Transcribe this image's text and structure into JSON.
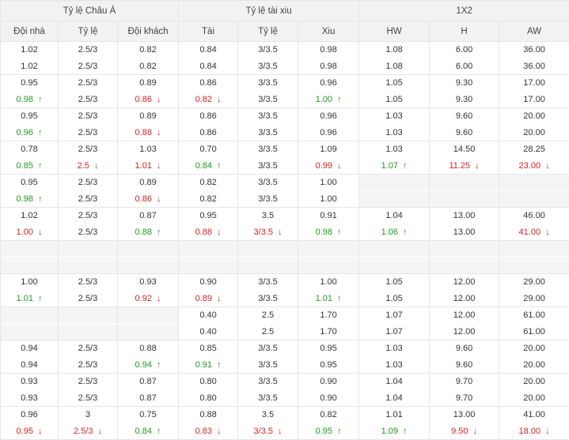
{
  "headers": {
    "asian": "Tỷ lệ Châu Á",
    "overunder": "Tỷ lệ tài xiu",
    "x12": "1X2",
    "columns": [
      "Đội nhà",
      "Tỷ lệ",
      "Đội khách",
      "Tài",
      "Tỷ lệ",
      "Xiu",
      "HW",
      "H",
      "AW"
    ]
  },
  "arrows": {
    "up": "↑",
    "down": "↓"
  },
  "colors": {
    "up": "#1f9a1f",
    "down": "#d22323",
    "border": "#e6e6e6",
    "header_bg": "#f2f2f2"
  },
  "rows": [
    [
      [
        {
          "v": "1.02"
        },
        {
          "v": "2.5/3"
        },
        {
          "v": "0.82"
        },
        {
          "v": "0.84"
        },
        {
          "v": "3/3.5"
        },
        {
          "v": "0.98"
        },
        {
          "v": "1.08"
        },
        {
          "v": "6.00"
        },
        {
          "v": "36.00"
        }
      ],
      [
        {
          "v": "1.02"
        },
        {
          "v": "2.5/3"
        },
        {
          "v": "0.82"
        },
        {
          "v": "0.84"
        },
        {
          "v": "3/3.5"
        },
        {
          "v": "0.98"
        },
        {
          "v": "1.08"
        },
        {
          "v": "6.00"
        },
        {
          "v": "36.00"
        }
      ]
    ],
    [
      [
        {
          "v": "0.95"
        },
        {
          "v": "2.5/3"
        },
        {
          "v": "0.89"
        },
        {
          "v": "0.86"
        },
        {
          "v": "3/3.5"
        },
        {
          "v": "0.96"
        },
        {
          "v": "1.05"
        },
        {
          "v": "9.30"
        },
        {
          "v": "17.00"
        }
      ],
      [
        {
          "v": "0.98",
          "t": "up"
        },
        {
          "v": "2.5/3"
        },
        {
          "v": "0.86",
          "t": "down"
        },
        {
          "v": "0.82",
          "t": "down"
        },
        {
          "v": "3/3.5"
        },
        {
          "v": "1.00",
          "t": "up"
        },
        {
          "v": "1.05"
        },
        {
          "v": "9.30"
        },
        {
          "v": "17.00"
        }
      ]
    ],
    [
      [
        {
          "v": "0.95"
        },
        {
          "v": "2.5/3"
        },
        {
          "v": "0.89"
        },
        {
          "v": "0.86"
        },
        {
          "v": "3/3.5"
        },
        {
          "v": "0.96"
        },
        {
          "v": "1.03"
        },
        {
          "v": "9.60"
        },
        {
          "v": "20.00"
        }
      ],
      [
        {
          "v": "0.96",
          "t": "up"
        },
        {
          "v": "2.5/3"
        },
        {
          "v": "0.88",
          "t": "down"
        },
        {
          "v": "0.86"
        },
        {
          "v": "3/3.5"
        },
        {
          "v": "0.96"
        },
        {
          "v": "1.03"
        },
        {
          "v": "9.60"
        },
        {
          "v": "20.00"
        }
      ]
    ],
    [
      [
        {
          "v": "0.78"
        },
        {
          "v": "2.5/3"
        },
        {
          "v": "1.03"
        },
        {
          "v": "0.70"
        },
        {
          "v": "3/3.5"
        },
        {
          "v": "1.09"
        },
        {
          "v": "1.03"
        },
        {
          "v": "14.50"
        },
        {
          "v": "28.25"
        }
      ],
      [
        {
          "v": "0.85",
          "t": "up"
        },
        {
          "v": "2.5",
          "t": "down"
        },
        {
          "v": "1.01",
          "t": "down"
        },
        {
          "v": "0.84",
          "t": "up"
        },
        {
          "v": "3/3.5"
        },
        {
          "v": "0.99",
          "t": "down"
        },
        {
          "v": "1.07",
          "t": "up"
        },
        {
          "v": "11.25",
          "t": "down"
        },
        {
          "v": "23.00",
          "t": "down"
        }
      ]
    ],
    [
      [
        {
          "v": "0.95"
        },
        {
          "v": "2.5/3"
        },
        {
          "v": "0.89"
        },
        {
          "v": "0.82"
        },
        {
          "v": "3/3.5"
        },
        {
          "v": "1.00"
        },
        {
          "v": ""
        },
        {
          "v": ""
        },
        {
          "v": ""
        }
      ],
      [
        {
          "v": "0.98",
          "t": "up"
        },
        {
          "v": "2.5/3"
        },
        {
          "v": "0.86",
          "t": "down"
        },
        {
          "v": "0.82"
        },
        {
          "v": "3/3.5"
        },
        {
          "v": "1.00"
        },
        {
          "v": ""
        },
        {
          "v": ""
        },
        {
          "v": ""
        }
      ]
    ],
    [
      [
        {
          "v": "1.02"
        },
        {
          "v": "2.5/3"
        },
        {
          "v": "0.87"
        },
        {
          "v": "0.95"
        },
        {
          "v": "3.5"
        },
        {
          "v": "0.91"
        },
        {
          "v": "1.04"
        },
        {
          "v": "13.00"
        },
        {
          "v": "46.00"
        }
      ],
      [
        {
          "v": "1.00",
          "t": "down"
        },
        {
          "v": "2.5/3"
        },
        {
          "v": "0.88",
          "t": "up"
        },
        {
          "v": "0.88",
          "t": "down"
        },
        {
          "v": "3/3.5",
          "t": "down"
        },
        {
          "v": "0.98",
          "t": "up"
        },
        {
          "v": "1.06",
          "t": "up"
        },
        {
          "v": "13.00"
        },
        {
          "v": "41.00",
          "t": "down"
        }
      ]
    ],
    [
      [
        {
          "v": ""
        },
        {
          "v": ""
        },
        {
          "v": ""
        },
        {
          "v": ""
        },
        {
          "v": ""
        },
        {
          "v": ""
        },
        {
          "v": ""
        },
        {
          "v": ""
        },
        {
          "v": ""
        }
      ],
      [
        {
          "v": ""
        },
        {
          "v": ""
        },
        {
          "v": ""
        },
        {
          "v": ""
        },
        {
          "v": ""
        },
        {
          "v": ""
        },
        {
          "v": ""
        },
        {
          "v": ""
        },
        {
          "v": ""
        }
      ]
    ],
    [
      [
        {
          "v": "1.00"
        },
        {
          "v": "2.5/3"
        },
        {
          "v": "0.93"
        },
        {
          "v": "0.90"
        },
        {
          "v": "3/3.5"
        },
        {
          "v": "1.00"
        },
        {
          "v": "1.05"
        },
        {
          "v": "12.00"
        },
        {
          "v": "29.00"
        }
      ],
      [
        {
          "v": "1.01",
          "t": "up"
        },
        {
          "v": "2.5/3"
        },
        {
          "v": "0.92",
          "t": "down"
        },
        {
          "v": "0.89",
          "t": "down"
        },
        {
          "v": "3/3.5"
        },
        {
          "v": "1.01",
          "t": "up"
        },
        {
          "v": "1.05"
        },
        {
          "v": "12.00"
        },
        {
          "v": "29.00"
        }
      ]
    ],
    [
      [
        {
          "v": ""
        },
        {
          "v": ""
        },
        {
          "v": ""
        },
        {
          "v": "0.40"
        },
        {
          "v": "2.5"
        },
        {
          "v": "1.70"
        },
        {
          "v": "1.07"
        },
        {
          "v": "12.00"
        },
        {
          "v": "61.00"
        }
      ],
      [
        {
          "v": ""
        },
        {
          "v": ""
        },
        {
          "v": ""
        },
        {
          "v": "0.40"
        },
        {
          "v": "2.5"
        },
        {
          "v": "1.70"
        },
        {
          "v": "1.07"
        },
        {
          "v": "12.00"
        },
        {
          "v": "61.00"
        }
      ]
    ],
    [
      [
        {
          "v": "0.94"
        },
        {
          "v": "2.5/3"
        },
        {
          "v": "0.88"
        },
        {
          "v": "0.85"
        },
        {
          "v": "3/3.5"
        },
        {
          "v": "0.95"
        },
        {
          "v": "1.03"
        },
        {
          "v": "9.60"
        },
        {
          "v": "20.00"
        }
      ],
      [
        {
          "v": "0.94"
        },
        {
          "v": "2.5/3"
        },
        {
          "v": "0.94",
          "t": "up"
        },
        {
          "v": "0.91",
          "t": "up"
        },
        {
          "v": "3/3.5"
        },
        {
          "v": "0.95"
        },
        {
          "v": "1.03"
        },
        {
          "v": "9.60"
        },
        {
          "v": "20.00"
        }
      ]
    ],
    [
      [
        {
          "v": "0.93"
        },
        {
          "v": "2.5/3"
        },
        {
          "v": "0.87"
        },
        {
          "v": "0.80"
        },
        {
          "v": "3/3.5"
        },
        {
          "v": "0.90"
        },
        {
          "v": "1.04"
        },
        {
          "v": "9.70"
        },
        {
          "v": "20.00"
        }
      ],
      [
        {
          "v": "0.93"
        },
        {
          "v": "2.5/3"
        },
        {
          "v": "0.87"
        },
        {
          "v": "0.80"
        },
        {
          "v": "3/3.5"
        },
        {
          "v": "0.90"
        },
        {
          "v": "1.04"
        },
        {
          "v": "9.70"
        },
        {
          "v": "20.00"
        }
      ]
    ],
    [
      [
        {
          "v": "0.96"
        },
        {
          "v": "3"
        },
        {
          "v": "0.75"
        },
        {
          "v": "0.88"
        },
        {
          "v": "3.5"
        },
        {
          "v": "0.82"
        },
        {
          "v": "1.01"
        },
        {
          "v": "13.00"
        },
        {
          "v": "41.00"
        }
      ],
      [
        {
          "v": "0.95",
          "t": "down"
        },
        {
          "v": "2.5/3",
          "t": "down"
        },
        {
          "v": "0.84",
          "t": "up"
        },
        {
          "v": "0.83",
          "t": "down"
        },
        {
          "v": "3/3.5",
          "t": "down"
        },
        {
          "v": "0.95",
          "t": "up"
        },
        {
          "v": "1.09",
          "t": "up"
        },
        {
          "v": "9.50",
          "t": "down"
        },
        {
          "v": "18.00",
          "t": "down"
        }
      ]
    ]
  ]
}
